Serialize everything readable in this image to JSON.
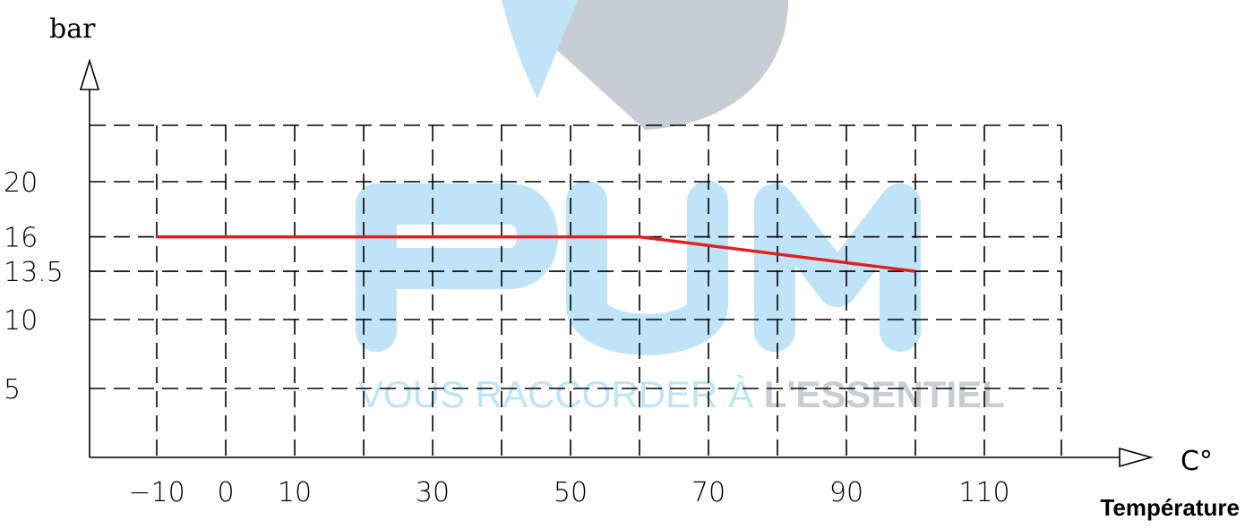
{
  "chart_data": {
    "type": "line",
    "ylabel": "bar",
    "xunit": "C°",
    "xlabel": "Température",
    "x_ticks": [
      -10,
      0,
      10,
      30,
      50,
      70,
      90,
      110
    ],
    "y_ticks": [
      5,
      10,
      13.5,
      16,
      20
    ],
    "y_tick_labels": [
      "5",
      "10",
      "13.5",
      "16",
      "20"
    ],
    "xlim": [
      -20,
      120
    ],
    "ylim": [
      0,
      24
    ],
    "grid": true,
    "series": [
      {
        "x": [
          -10,
          60,
          100
        ],
        "y": [
          16,
          16,
          13.5
        ],
        "color": "#e02020"
      }
    ]
  },
  "watermark": {
    "letters": "PUM",
    "tagline_light": "VOUS RACCORDER À ",
    "tagline_bold": "L'ESSENTIEL",
    "color_light": "#bfe4f7",
    "color_gray": "#c7cdd3"
  }
}
